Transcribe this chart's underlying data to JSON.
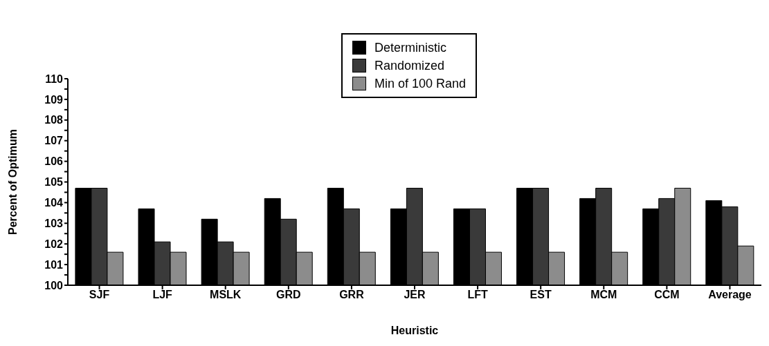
{
  "chart_data": {
    "type": "bar",
    "xlabel": "Heuristic",
    "ylabel": "Percent of Optimum",
    "categories": [
      "SJF",
      "LJF",
      "MSLK",
      "GRD",
      "GRR",
      "JER",
      "LFT",
      "EST",
      "MCM",
      "CCM",
      "Average"
    ],
    "series": [
      {
        "name": "Deterministic",
        "color": "#000000",
        "values": [
          104.7,
          103.7,
          103.2,
          104.2,
          104.7,
          103.7,
          103.7,
          104.7,
          104.2,
          103.7,
          104.1
        ]
      },
      {
        "name": "Randomized",
        "color": "#3a3a3a",
        "values": [
          104.7,
          102.1,
          102.1,
          103.2,
          103.7,
          104.7,
          103.7,
          104.7,
          104.7,
          104.2,
          103.8
        ]
      },
      {
        "name": "Min of 100 Rand",
        "color": "#8c8c8c",
        "values": [
          101.6,
          101.6,
          101.6,
          101.6,
          101.6,
          101.6,
          101.6,
          101.6,
          101.6,
          104.7,
          101.9
        ]
      }
    ],
    "ylim": [
      100,
      110
    ],
    "yticks": [
      100,
      {
        "value": 100.5,
        "label": null
      },
      101,
      {
        "value": 101.5,
        "label": null
      },
      102,
      {
        "value": 102.5,
        "label": null
      },
      103,
      {
        "value": 103.5,
        "label": null
      },
      104,
      {
        "value": 104.5,
        "label": null
      },
      105,
      {
        "value": 105.5,
        "label": null
      },
      106,
      {
        "value": 106.5,
        "label": null
      },
      107,
      {
        "value": 107.5,
        "label": null
      },
      108,
      {
        "value": 108.5,
        "label": null
      },
      109,
      {
        "value": 109.5,
        "label": null
      },
      110
    ],
    "grid": false,
    "legend": "top"
  }
}
